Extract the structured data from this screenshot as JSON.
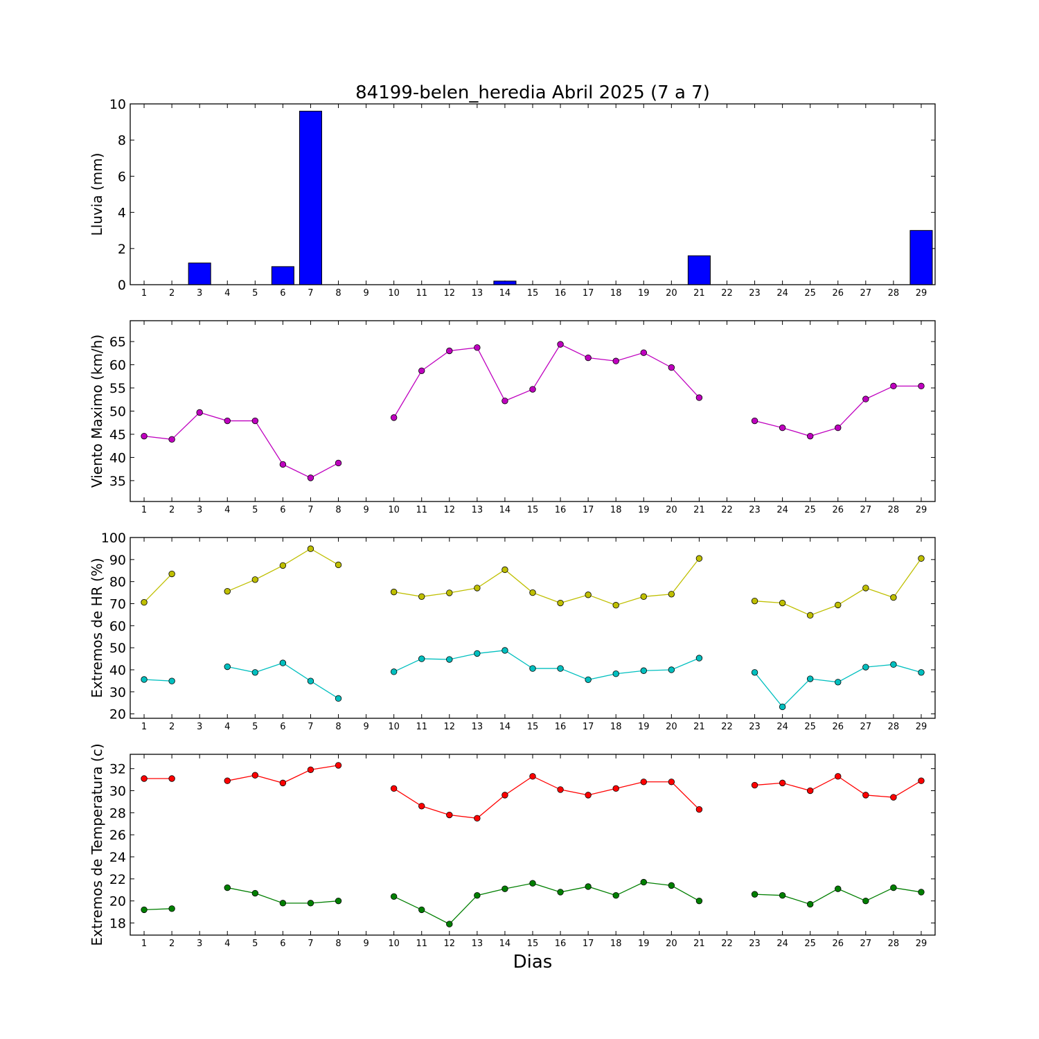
{
  "chart_data": {
    "title": "84199-belen_heredia Abril 2025  (7 a 7)",
    "xlabel": "Dias",
    "x": [
      1,
      2,
      3,
      4,
      5,
      6,
      7,
      8,
      9,
      10,
      11,
      12,
      13,
      14,
      15,
      16,
      17,
      18,
      19,
      20,
      21,
      22,
      23,
      24,
      25,
      26,
      27,
      28,
      29
    ],
    "panels": [
      {
        "type": "bar",
        "ylabel": "Lluvia (mm)",
        "ylim": [
          0,
          10
        ],
        "yticks": [
          0,
          2,
          4,
          6,
          8,
          10
        ],
        "grid": false,
        "series": [
          {
            "color": "#0000ff",
            "values": [
              0,
              0,
              1.2,
              0,
              0,
              1.0,
              9.6,
              0,
              0,
              0,
              0,
              0,
              0,
              0.2,
              0,
              0,
              0,
              0,
              0,
              0,
              1.6,
              0,
              0,
              0,
              0,
              0,
              0,
              0,
              3.0
            ]
          }
        ]
      },
      {
        "type": "line",
        "ylabel": "Viento Maximo (km/h)",
        "ylim": [
          30.5,
          69.5
        ],
        "yticks": [
          35,
          40,
          45,
          50,
          55,
          60,
          65
        ],
        "grid": false,
        "series": [
          {
            "color": "#bf00bf",
            "values": [
              44.6,
              43.9,
              49.7,
              47.9,
              47.9,
              38.5,
              35.6,
              38.8,
              null,
              48.6,
              58.7,
              63.0,
              63.7,
              52.2,
              54.7,
              64.4,
              61.5,
              60.8,
              62.6,
              59.4,
              52.9,
              null,
              47.9,
              46.4,
              44.6,
              46.4,
              52.6,
              55.4,
              55.4
            ]
          }
        ]
      },
      {
        "type": "line",
        "ylabel": "Extremos de HR (%)",
        "ylim": [
          18,
          100
        ],
        "yticks": [
          20,
          30,
          40,
          50,
          60,
          70,
          80,
          90,
          100
        ],
        "grid": false,
        "series": [
          {
            "color": "#bfbf00",
            "values": [
              70.6,
              83.5,
              null,
              75.6,
              80.9,
              87.3,
              94.9,
              87.6,
              null,
              75.3,
              73.2,
              74.9,
              77.1,
              85.4,
              75.0,
              70.3,
              74.0,
              69.3,
              73.2,
              74.3,
              90.5,
              null,
              71.2,
              70.3,
              64.7,
              69.4,
              77.1,
              72.8,
              90.5
            ]
          },
          {
            "color": "#00bfbf",
            "values": [
              35.6,
              34.9,
              null,
              41.4,
              38.8,
              43.1,
              34.9,
              27.0,
              null,
              39.1,
              45.0,
              44.7,
              47.4,
              48.8,
              40.6,
              40.6,
              35.5,
              38.2,
              39.6,
              40.0,
              45.3,
              null,
              38.8,
              23.2,
              35.9,
              34.4,
              41.2,
              42.4,
              38.8
            ]
          }
        ]
      },
      {
        "type": "line",
        "ylabel": "Extremos de Temperatura (c)",
        "ylim": [
          16.9,
          33.3
        ],
        "yticks": [
          18,
          20,
          22,
          24,
          26,
          28,
          30,
          32
        ],
        "grid": false,
        "series": [
          {
            "color": "#ff0000",
            "values": [
              31.1,
              31.1,
              null,
              30.9,
              31.4,
              30.7,
              31.9,
              32.3,
              null,
              30.2,
              28.6,
              27.8,
              27.5,
              29.6,
              31.3,
              30.1,
              29.6,
              30.2,
              30.8,
              30.8,
              28.3,
              null,
              30.5,
              30.7,
              30.0,
              31.3,
              29.6,
              29.4,
              30.9
            ]
          },
          {
            "color": "#007f00",
            "values": [
              19.2,
              19.3,
              null,
              21.2,
              20.7,
              19.8,
              19.8,
              20.0,
              null,
              20.4,
              19.2,
              17.9,
              20.5,
              21.1,
              21.6,
              20.8,
              21.3,
              20.5,
              21.7,
              21.4,
              20.0,
              null,
              20.6,
              20.5,
              19.7,
              21.1,
              20.0,
              21.2,
              20.8
            ]
          }
        ]
      }
    ]
  }
}
